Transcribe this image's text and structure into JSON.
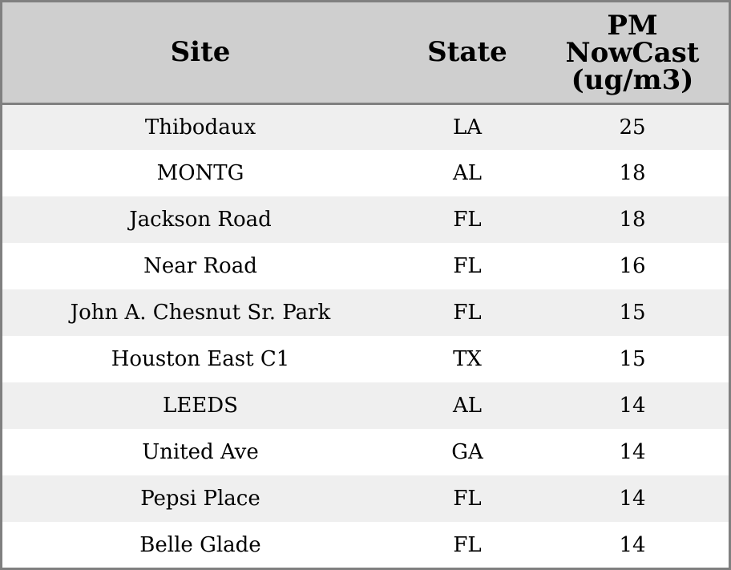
{
  "chart_data": {
    "type": "table",
    "columns": [
      "Site",
      "State",
      "PM NowCast (ug/m3)"
    ],
    "header_lines": {
      "site": "Site",
      "state": "State",
      "pm": [
        "PM",
        "NowCast",
        "(ug/m3)"
      ]
    },
    "rows": [
      {
        "site": "Thibodaux",
        "state": "LA",
        "pm": 25
      },
      {
        "site": "MONTG",
        "state": "AL",
        "pm": 18
      },
      {
        "site": "Jackson Road",
        "state": "FL",
        "pm": 18
      },
      {
        "site": "Near Road",
        "state": "FL",
        "pm": 16
      },
      {
        "site": "John A. Chesnut Sr. Park",
        "state": "FL",
        "pm": 15
      },
      {
        "site": "Houston East C1",
        "state": "TX",
        "pm": 15
      },
      {
        "site": "LEEDS",
        "state": "AL",
        "pm": 14
      },
      {
        "site": "United Ave",
        "state": "GA",
        "pm": 14
      },
      {
        "site": "Pepsi Place",
        "state": "FL",
        "pm": 14
      },
      {
        "site": "Belle Glade",
        "state": "FL",
        "pm": 14
      }
    ],
    "colors": {
      "header_background": "#cfcfcf",
      "row_striped": "#efefef",
      "row_plain": "#ffffff",
      "border": "#808080"
    }
  }
}
